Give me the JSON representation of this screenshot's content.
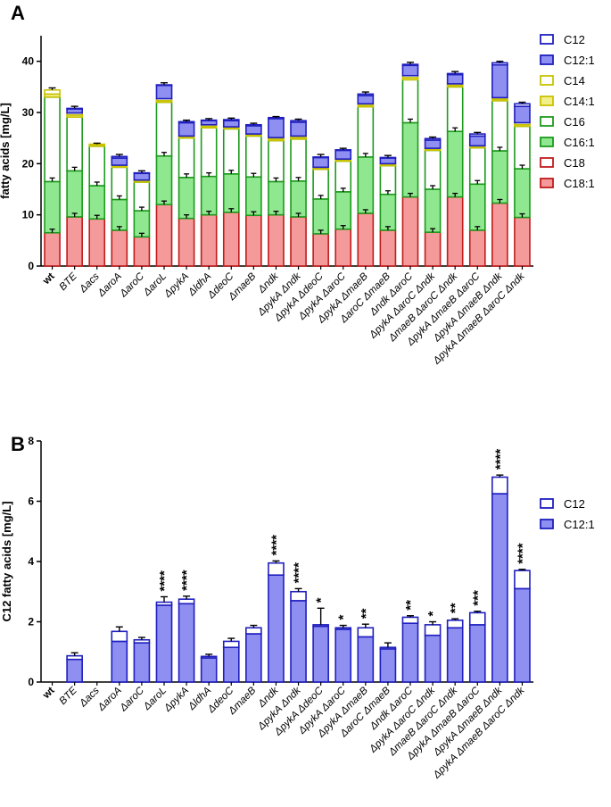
{
  "colors": {
    "C12": "#ffffff",
    "C12_edge": "#1f1fbf",
    "C12:1": "#8f8ff2",
    "C12:1_edge": "#1f1fbf",
    "C14": "#ffffff",
    "C14_edge": "#c9c200",
    "C14:1": "#f2ee8a",
    "C14:1_edge": "#c9c200",
    "C16": "#ffffff",
    "C16_edge": "#1d9a1d",
    "C16:1": "#8fe88f",
    "C16:1_edge": "#1d9a1d",
    "C18": "#ffffff",
    "C18_edge": "#c01c1c",
    "C18:1": "#f59a9a",
    "C18:1_edge": "#c01c1c"
  },
  "chart_data": [
    {
      "panel": "A",
      "type": "bar",
      "stacked": true,
      "ylabel": "fatty acids [mg/L]",
      "ylim": [
        0,
        45
      ],
      "yticks": [
        0,
        10,
        20,
        30,
        40
      ],
      "categories": [
        "wt",
        "BTE",
        "Δacs",
        "ΔaroA",
        "ΔaroC",
        "ΔaroL",
        "ΔpykA",
        "ΔldhA",
        "ΔdeoC",
        "ΔmaeB",
        "Δndk",
        "ΔpykA Δndk",
        "ΔpykA ΔdeoC",
        "ΔpykA ΔaroC",
        "ΔpykA ΔmaeB",
        "ΔaroC ΔmaeB",
        "Δndk ΔaroC",
        "ΔpykA ΔaroC Δndk",
        "ΔmaeB ΔaroC Δndk",
        "ΔpykA ΔmaeB ΔaroC",
        "ΔpykA ΔmaeB Δndk",
        "ΔpykA ΔmaeB ΔaroC Δndk"
      ],
      "bold_categories": [
        "wt"
      ],
      "legend": [
        "C12",
        "C12:1",
        "C14",
        "C14:1",
        "C16",
        "C16:1",
        "C18",
        "C18:1"
      ],
      "legend_position": "right",
      "series": [
        {
          "name": "C18:1",
          "values": [
            6.5,
            9.6,
            9.2,
            7.0,
            5.7,
            12.0,
            9.3,
            10.0,
            10.5,
            9.9,
            10.0,
            9.6,
            6.3,
            7.2,
            10.3,
            7.0,
            13.5,
            6.6,
            13.5,
            7.0,
            12.3,
            9.5
          ]
        },
        {
          "name": "C18",
          "values": [
            0,
            0,
            0,
            0,
            0,
            0,
            0,
            0,
            0,
            0,
            0,
            0,
            0,
            0,
            0,
            0,
            0,
            0,
            0,
            0,
            0,
            0
          ]
        },
        {
          "name": "C16:1",
          "values": [
            10.0,
            9.0,
            6.5,
            6.0,
            5.1,
            9.5,
            8.0,
            7.5,
            7.5,
            7.5,
            6.5,
            7.0,
            6.8,
            7.3,
            11.0,
            7.0,
            14.5,
            8.4,
            12.8,
            9.0,
            10.2,
            9.5
          ]
        },
        {
          "name": "C16",
          "values": [
            16.5,
            10.5,
            7.7,
            6.3,
            5.6,
            10.5,
            7.7,
            9.5,
            8.8,
            8.0,
            8.0,
            8.2,
            5.8,
            6.0,
            9.8,
            5.6,
            8.4,
            7.6,
            8.7,
            7.1,
            9.8,
            8.3
          ]
        },
        {
          "name": "C14:1",
          "values": [
            0.6,
            0.4,
            0.2,
            0.2,
            0.2,
            0.3,
            0.2,
            0.3,
            0.2,
            0.2,
            0.3,
            0.3,
            0.2,
            0.2,
            0.3,
            0.2,
            0.4,
            0.2,
            0.3,
            0.2,
            0.3,
            0.3
          ]
        },
        {
          "name": "C14",
          "values": [
            0.8,
            0.4,
            0.2,
            0.2,
            0.2,
            0.4,
            0.2,
            0.3,
            0.2,
            0.2,
            0.3,
            0.3,
            0.2,
            0.2,
            0.3,
            0.2,
            0.4,
            0.2,
            0.3,
            0.2,
            0.3,
            0.4
          ]
        },
        {
          "name": "C12:1",
          "values": [
            0,
            0.8,
            0,
            1.4,
            1.3,
            2.6,
            2.6,
            0.8,
            1.2,
            1.6,
            3.7,
            2.7,
            1.9,
            1.7,
            1.6,
            1.1,
            2.0,
            1.6,
            1.8,
            1.9,
            6.4,
            3.2
          ]
        },
        {
          "name": "C12",
          "values": [
            0,
            0.1,
            0,
            0.3,
            0.1,
            0.1,
            0.2,
            0.1,
            0.2,
            0.2,
            0.2,
            0.3,
            0.1,
            0.1,
            0.3,
            0.1,
            0.2,
            0.3,
            0.2,
            0.4,
            0.4,
            0.5
          ]
        }
      ],
      "error_bars": [
        0.4,
        0.4,
        0.2,
        0.4,
        0.4,
        0.4,
        0.3,
        0.3,
        0.3,
        0.3,
        0.2,
        0.3,
        0.5,
        0.3,
        0.4,
        0.4,
        0.4,
        0.3,
        0.4,
        0.3,
        0.3,
        0.3
      ]
    },
    {
      "panel": "B",
      "type": "bar",
      "stacked": true,
      "ylabel": "C12 fatty acids [mg/L]",
      "ylim": [
        0,
        8
      ],
      "yticks": [
        0,
        2,
        4,
        6,
        8
      ],
      "categories": [
        "wt",
        "BTE",
        "Δacs",
        "ΔaroA",
        "ΔaroC",
        "ΔaroL",
        "ΔpykA",
        "ΔldhA",
        "ΔdeoC",
        "ΔmaeB",
        "Δndk",
        "ΔpykA Δndk",
        "ΔpykA ΔdeoC",
        "ΔpykA ΔaroC",
        "ΔpykA ΔmaeB",
        "ΔaroC ΔmaeB",
        "Δndk ΔaroC",
        "ΔpykA ΔaroC Δndk",
        "ΔmaeB ΔaroC Δndk",
        "ΔpykA ΔmaeB ΔaroC",
        "ΔpykA ΔmaeB Δndk",
        "ΔpykA ΔmaeB ΔaroC Δndk"
      ],
      "bold_categories": [
        "wt"
      ],
      "legend": [
        "C12",
        "C12:1"
      ],
      "legend_position": "right",
      "series": [
        {
          "name": "C12:1",
          "values": [
            0,
            0.75,
            0,
            1.35,
            1.3,
            2.55,
            2.6,
            0.8,
            1.15,
            1.6,
            3.55,
            2.7,
            1.85,
            1.75,
            1.5,
            1.1,
            1.95,
            1.55,
            1.8,
            1.9,
            6.25,
            3.1
          ]
        },
        {
          "name": "C12",
          "values": [
            0,
            0.12,
            0,
            0.33,
            0.1,
            0.1,
            0.15,
            0.05,
            0.2,
            0.2,
            0.4,
            0.3,
            0.05,
            0.05,
            0.3,
            0.05,
            0.2,
            0.35,
            0.25,
            0.4,
            0.55,
            0.6
          ]
        }
      ],
      "error_bars": [
        0,
        0.1,
        0,
        0.15,
        0.08,
        0.18,
        0.1,
        0.07,
        0.1,
        0.08,
        0.07,
        0.1,
        0.55,
        0.08,
        0.12,
        0.15,
        0.05,
        0.1,
        0.05,
        0.05,
        0.07,
        0.04
      ],
      "significance": [
        "",
        "",
        "",
        "",
        "",
        "****",
        "****",
        "",
        "",
        "",
        "****",
        "****",
        "*",
        "*",
        "**",
        "",
        "**",
        "*",
        "**",
        "***",
        "****",
        "****"
      ]
    }
  ]
}
